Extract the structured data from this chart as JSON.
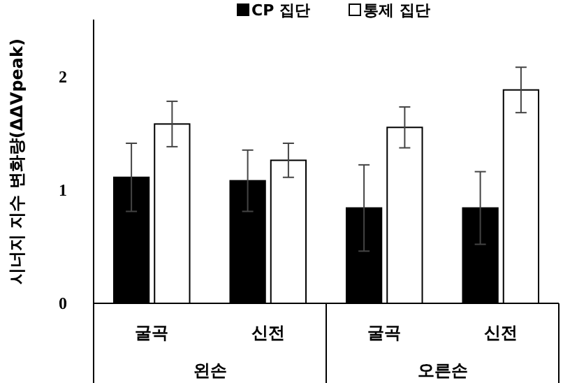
{
  "chart_data": {
    "type": "bar",
    "categories": [
      "굴곡",
      "신전",
      "굴곡",
      "신전"
    ],
    "series": [
      {
        "name": "CP 집단",
        "color": "#000000",
        "values": [
          1.11,
          1.08,
          0.84,
          0.84
        ],
        "errors": [
          0.3,
          0.27,
          0.38,
          0.32
        ]
      },
      {
        "name": "통제 집단",
        "color": "#ffffff",
        "values": [
          1.58,
          1.26,
          1.55,
          1.88
        ],
        "errors": [
          0.2,
          0.15,
          0.18,
          0.2
        ]
      }
    ],
    "ylabel": "시너지 지수 변화량(ΔΔVpeak)",
    "ylim": [
      0,
      2.5
    ],
    "yticks": [
      0,
      1,
      2
    ],
    "legend": "top",
    "grid": false,
    "annotations": [
      "왼손",
      "오른손"
    ]
  }
}
